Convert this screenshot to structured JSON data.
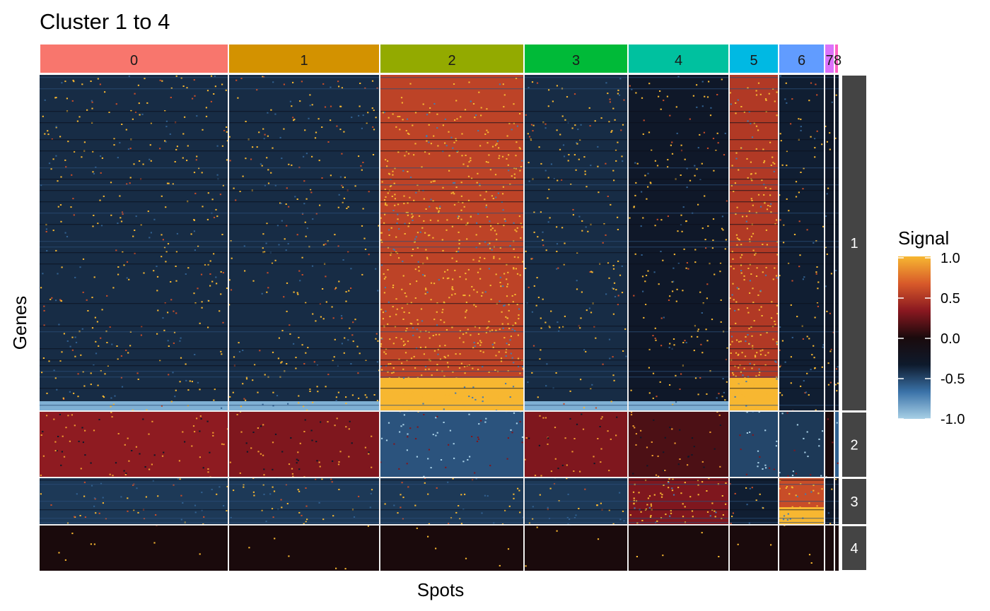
{
  "chart_data": {
    "type": "heatmap",
    "title": "Cluster 1 to 4",
    "xlabel": "Spots",
    "ylabel": "Genes",
    "legend": {
      "title": "Signal",
      "position": "right",
      "ticks": [
        "1.0",
        "0.5",
        "0.0",
        "-0.5",
        "-1.0"
      ],
      "range": [
        -1.0,
        1.0
      ],
      "colors": [
        "#a8d0e6",
        "#3a72a8",
        "#0e1a2c",
        "#1a0a0c",
        "#8a1820",
        "#d85a2a",
        "#f7b731"
      ]
    },
    "column_groups": [
      {
        "label": "0",
        "color": "#F8766D"
      },
      {
        "label": "1",
        "color": "#D39200"
      },
      {
        "label": "2",
        "color": "#93AA00"
      },
      {
        "label": "3",
        "color": "#00BA38"
      },
      {
        "label": "4",
        "color": "#00C19F"
      },
      {
        "label": "5",
        "color": "#00B9E3"
      },
      {
        "label": "6",
        "color": "#619CFF"
      },
      {
        "label": "7",
        "color": "#DB72FB"
      },
      {
        "label": "8",
        "color": "#FF61C3"
      }
    ],
    "row_groups": [
      {
        "label": "1"
      },
      {
        "label": "2"
      },
      {
        "label": "3"
      },
      {
        "label": "4"
      }
    ],
    "mean_signal": [
      [
        -0.4,
        -0.4,
        0.55,
        -0.4,
        -0.3,
        0.5,
        -0.35,
        -0.3,
        -0.3
      ],
      [
        0.35,
        0.3,
        -0.55,
        0.3,
        0.15,
        -0.5,
        -0.45,
        0.0,
        -0.6
      ],
      [
        -0.45,
        -0.45,
        -0.45,
        -0.45,
        0.3,
        -0.35,
        0.6,
        -0.3,
        -0.3
      ],
      [
        0.0,
        0.0,
        0.0,
        0.0,
        0.0,
        0.0,
        0.0,
        0.0,
        0.0
      ]
    ]
  }
}
